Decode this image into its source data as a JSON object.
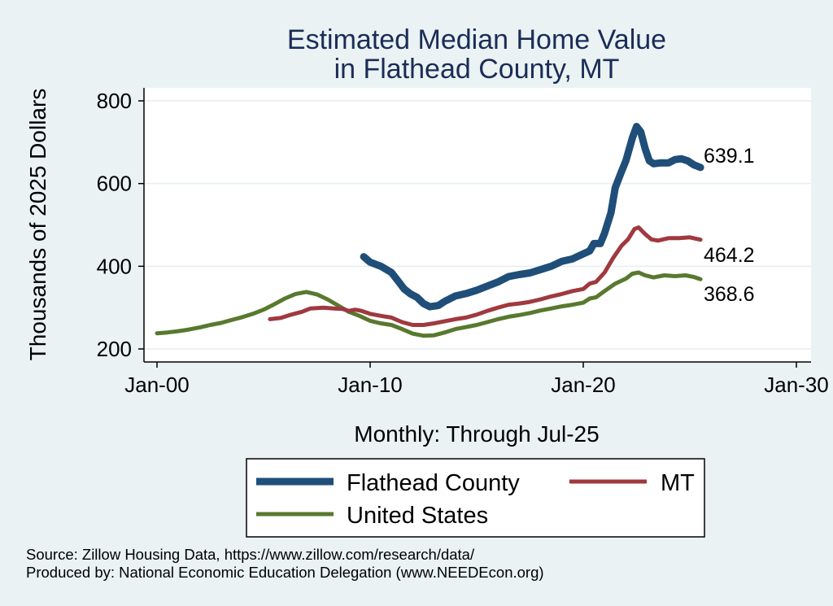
{
  "title_lines": [
    "Estimated Median Home Value",
    "in Flathead County, MT"
  ],
  "footer_lines": [
    "Source: Zillow Housing Data, https://www.zillow.com/research/data/",
    "Produced by: National Economic Education Delegation (www.NEEDEcon.org)"
  ],
  "colors": {
    "background": "#eaf2f3",
    "plot_background": "#ffffff",
    "title": "#1a2d57",
    "flathead": "#1f4e79",
    "mt": "#a0393f",
    "us": "#58792e"
  },
  "chart_data": {
    "type": "line",
    "title": "Estimated Median Home Value in Flathead County, MT",
    "xlabel": "Monthly: Through Jul-25",
    "ylabel": "Thousands of 2025 Dollars",
    "x_ticks": [
      {
        "value": 2000,
        "label": "Jan-00"
      },
      {
        "value": 2010,
        "label": "Jan-10"
      },
      {
        "value": 2020,
        "label": "Jan-20"
      },
      {
        "value": 2030,
        "label": "Jan-30"
      }
    ],
    "y_ticks": [
      {
        "value": 200,
        "label": "200"
      },
      {
        "value": 400,
        "label": "400"
      },
      {
        "value": 600,
        "label": "600"
      },
      {
        "value": 800,
        "label": "800"
      }
    ],
    "xlim": [
      2000,
      2030
    ],
    "ylim": [
      200,
      800
    ],
    "grid": true,
    "legend_position": "bottom",
    "end_labels": [
      "639.1",
      "464.2",
      "368.6"
    ],
    "series": [
      {
        "name": "Flathead County",
        "key": "flathead",
        "points": [
          [
            2009.7,
            423
          ],
          [
            2010.0,
            410
          ],
          [
            2010.5,
            400
          ],
          [
            2011.0,
            385
          ],
          [
            2011.3,
            365
          ],
          [
            2011.6,
            345
          ],
          [
            2011.9,
            333
          ],
          [
            2012.2,
            325
          ],
          [
            2012.5,
            310
          ],
          [
            2012.8,
            302
          ],
          [
            2013.2,
            305
          ],
          [
            2013.5,
            315
          ],
          [
            2014.0,
            328
          ],
          [
            2014.5,
            334
          ],
          [
            2015.0,
            342
          ],
          [
            2015.5,
            352
          ],
          [
            2016.0,
            362
          ],
          [
            2016.5,
            375
          ],
          [
            2017.0,
            380
          ],
          [
            2017.5,
            384
          ],
          [
            2018.0,
            392
          ],
          [
            2018.5,
            400
          ],
          [
            2019.0,
            412
          ],
          [
            2019.5,
            418
          ],
          [
            2020.0,
            430
          ],
          [
            2020.3,
            437
          ],
          [
            2020.5,
            455
          ],
          [
            2020.8,
            455
          ],
          [
            2021.0,
            480
          ],
          [
            2021.3,
            530
          ],
          [
            2021.5,
            590
          ],
          [
            2021.8,
            630
          ],
          [
            2022.0,
            655
          ],
          [
            2022.3,
            710
          ],
          [
            2022.5,
            738
          ],
          [
            2022.7,
            725
          ],
          [
            2022.9,
            685
          ],
          [
            2023.1,
            655
          ],
          [
            2023.3,
            648
          ],
          [
            2023.6,
            650
          ],
          [
            2024.0,
            650
          ],
          [
            2024.3,
            658
          ],
          [
            2024.6,
            660
          ],
          [
            2024.9,
            655
          ],
          [
            2025.2,
            645
          ],
          [
            2025.5,
            639.1
          ]
        ]
      },
      {
        "name": "MT",
        "key": "mt",
        "points": [
          [
            2005.3,
            272
          ],
          [
            2005.8,
            275
          ],
          [
            2006.3,
            283
          ],
          [
            2006.8,
            290
          ],
          [
            2007.2,
            298
          ],
          [
            2007.8,
            300
          ],
          [
            2008.3,
            298
          ],
          [
            2008.7,
            297
          ],
          [
            2009.0,
            292
          ],
          [
            2009.3,
            295
          ],
          [
            2009.6,
            292
          ],
          [
            2010.0,
            285
          ],
          [
            2010.5,
            280
          ],
          [
            2011.0,
            276
          ],
          [
            2011.5,
            265
          ],
          [
            2012.0,
            258
          ],
          [
            2012.5,
            258
          ],
          [
            2013.0,
            262
          ],
          [
            2013.5,
            267
          ],
          [
            2014.0,
            272
          ],
          [
            2014.5,
            276
          ],
          [
            2015.0,
            283
          ],
          [
            2015.5,
            292
          ],
          [
            2016.0,
            300
          ],
          [
            2016.5,
            307
          ],
          [
            2017.0,
            310
          ],
          [
            2017.5,
            314
          ],
          [
            2018.0,
            320
          ],
          [
            2018.5,
            327
          ],
          [
            2019.0,
            333
          ],
          [
            2019.5,
            340
          ],
          [
            2020.0,
            345
          ],
          [
            2020.3,
            358
          ],
          [
            2020.6,
            362
          ],
          [
            2021.0,
            385
          ],
          [
            2021.4,
            420
          ],
          [
            2021.8,
            450
          ],
          [
            2022.1,
            465
          ],
          [
            2022.4,
            490
          ],
          [
            2022.6,
            494
          ],
          [
            2022.9,
            478
          ],
          [
            2023.2,
            465
          ],
          [
            2023.5,
            462
          ],
          [
            2024.0,
            468
          ],
          [
            2024.5,
            468
          ],
          [
            2025.0,
            470
          ],
          [
            2025.5,
            464.2
          ]
        ]
      },
      {
        "name": "United States",
        "key": "us",
        "points": [
          [
            2000.0,
            238
          ],
          [
            2000.5,
            240
          ],
          [
            2001.0,
            243
          ],
          [
            2001.5,
            247
          ],
          [
            2002.0,
            252
          ],
          [
            2002.5,
            258
          ],
          [
            2003.0,
            263
          ],
          [
            2003.5,
            270
          ],
          [
            2004.0,
            277
          ],
          [
            2004.5,
            285
          ],
          [
            2005.0,
            295
          ],
          [
            2005.5,
            308
          ],
          [
            2006.0,
            322
          ],
          [
            2006.5,
            333
          ],
          [
            2007.0,
            338
          ],
          [
            2007.5,
            332
          ],
          [
            2008.0,
            320
          ],
          [
            2008.5,
            305
          ],
          [
            2009.0,
            290
          ],
          [
            2009.5,
            280
          ],
          [
            2010.0,
            268
          ],
          [
            2010.5,
            262
          ],
          [
            2011.0,
            258
          ],
          [
            2011.5,
            248
          ],
          [
            2012.0,
            237
          ],
          [
            2012.5,
            232
          ],
          [
            2013.0,
            233
          ],
          [
            2013.5,
            240
          ],
          [
            2014.0,
            248
          ],
          [
            2014.5,
            253
          ],
          [
            2015.0,
            258
          ],
          [
            2015.5,
            265
          ],
          [
            2016.0,
            272
          ],
          [
            2016.5,
            278
          ],
          [
            2017.0,
            282
          ],
          [
            2017.5,
            287
          ],
          [
            2018.0,
            293
          ],
          [
            2018.5,
            298
          ],
          [
            2019.0,
            303
          ],
          [
            2019.5,
            307
          ],
          [
            2020.0,
            312
          ],
          [
            2020.3,
            322
          ],
          [
            2020.6,
            325
          ],
          [
            2021.0,
            340
          ],
          [
            2021.5,
            358
          ],
          [
            2022.0,
            370
          ],
          [
            2022.3,
            382
          ],
          [
            2022.6,
            385
          ],
          [
            2022.9,
            378
          ],
          [
            2023.3,
            373
          ],
          [
            2023.8,
            378
          ],
          [
            2024.3,
            376
          ],
          [
            2024.8,
            378
          ],
          [
            2025.2,
            374
          ],
          [
            2025.5,
            368.6
          ]
        ]
      }
    ]
  },
  "legend": {
    "items": [
      {
        "key": "flathead",
        "label": "Flathead County"
      },
      {
        "key": "mt",
        "label": "MT"
      },
      {
        "key": "us",
        "label": "United States"
      }
    ]
  }
}
